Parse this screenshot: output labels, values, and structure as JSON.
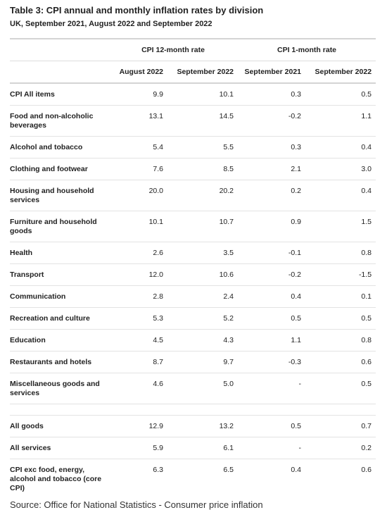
{
  "title": "Table 3: CPI annual and monthly inflation rates by division",
  "subtitle": "UK, September 2021, August 2022 and September 2022",
  "header": {
    "group_12m": "CPI 12-month rate",
    "group_1m": "CPI 1-month rate",
    "columns": [
      "August 2022",
      "September 2022",
      "September 2021",
      "September 2022"
    ]
  },
  "rows": [
    {
      "label": "CPI All items",
      "values": [
        "9.9",
        "10.1",
        "0.3",
        "0.5"
      ]
    },
    {
      "label": "Food and non-alcoholic beverages",
      "values": [
        "13.1",
        "14.5",
        "-0.2",
        "1.1"
      ]
    },
    {
      "label": "Alcohol and tobacco",
      "values": [
        "5.4",
        "5.5",
        "0.3",
        "0.4"
      ]
    },
    {
      "label": "Clothing and footwear",
      "values": [
        "7.6",
        "8.5",
        "2.1",
        "3.0"
      ]
    },
    {
      "label": "Housing and household services",
      "values": [
        "20.0",
        "20.2",
        "0.2",
        "0.4"
      ]
    },
    {
      "label": "Furniture and household goods",
      "values": [
        "10.1",
        "10.7",
        "0.9",
        "1.5"
      ]
    },
    {
      "label": "Health",
      "values": [
        "2.6",
        "3.5",
        "-0.1",
        "0.8"
      ]
    },
    {
      "label": "Transport",
      "values": [
        "12.0",
        "10.6",
        "-0.2",
        "-1.5"
      ]
    },
    {
      "label": "Communication",
      "values": [
        "2.8",
        "2.4",
        "0.4",
        "0.1"
      ]
    },
    {
      "label": "Recreation and culture",
      "values": [
        "5.3",
        "5.2",
        "0.5",
        "0.5"
      ]
    },
    {
      "label": "Education",
      "values": [
        "4.5",
        "4.3",
        "1.1",
        "0.8"
      ]
    },
    {
      "label": "Restaurants and hotels",
      "values": [
        "8.7",
        "9.7",
        "-0.3",
        "0.6"
      ]
    },
    {
      "label": "Miscellaneous goods and services",
      "values": [
        "4.6",
        "5.0",
        "-",
        "0.5"
      ]
    }
  ],
  "summary_rows": [
    {
      "label": "All goods",
      "values": [
        "12.9",
        "13.2",
        "0.5",
        "0.7"
      ]
    },
    {
      "label": "All services",
      "values": [
        "5.9",
        "6.1",
        "-",
        "0.2"
      ]
    },
    {
      "label": "CPI exc food, energy, alcohol and tobacco (core CPI)",
      "values": [
        "6.3",
        "6.5",
        "0.4",
        "0.6"
      ]
    }
  ],
  "source": "Source: Office for National Statistics - Consumer price inflation"
}
